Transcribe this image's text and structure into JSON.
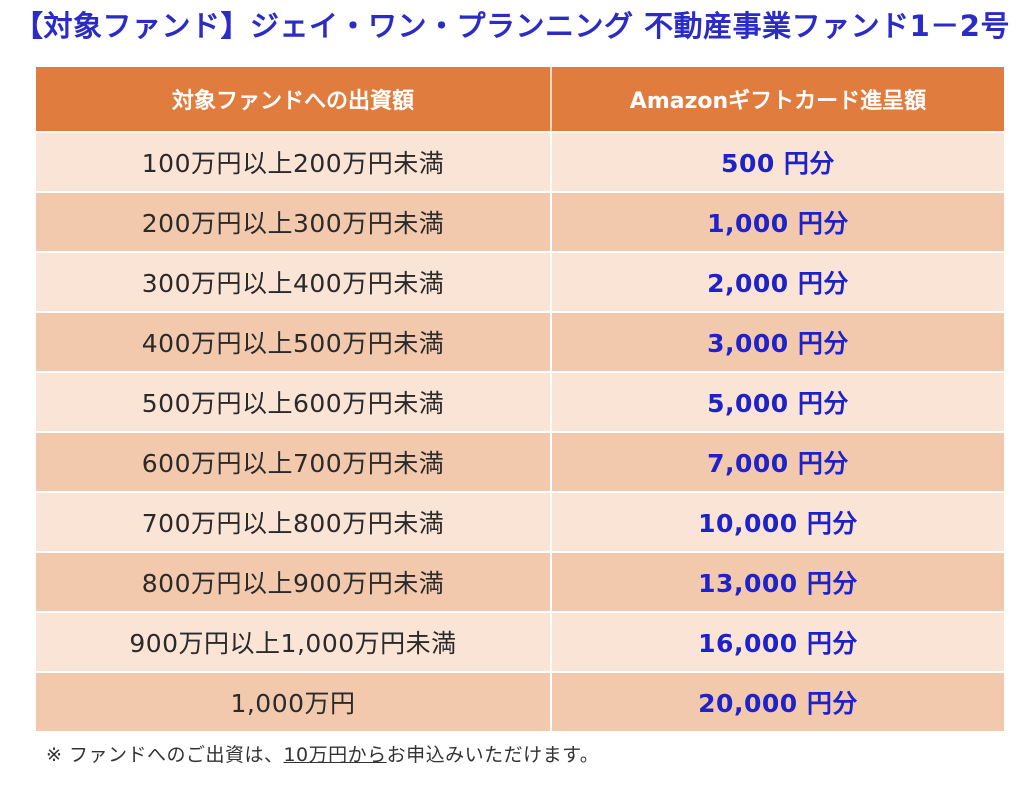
{
  "title": "【対象ファンド】ジェイ・ワン・プランニング 不動産事業ファンド1－2号",
  "table": {
    "headers": [
      "対象ファンドへの出資額",
      "Amazonギフトカード進呈額"
    ],
    "rows": [
      {
        "range": "100万円以上200万円未満",
        "amount": "500 円分"
      },
      {
        "range": "200万円以上300万円未満",
        "amount": "1,000 円分"
      },
      {
        "range": "300万円以上400万円未満",
        "amount": "2,000 円分"
      },
      {
        "range": "400万円以上500万円未満",
        "amount": "3,000 円分"
      },
      {
        "range": "500万円以上600万円未満",
        "amount": "5,000 円分"
      },
      {
        "range": "600万円以上700万円未満",
        "amount": "7,000 円分"
      },
      {
        "range": "700万円以上800万円未満",
        "amount": "10,000 円分"
      },
      {
        "range": "800万円以上900万円未満",
        "amount": "13,000 円分"
      },
      {
        "range": "900万円以上1,000万円未満",
        "amount": "16,000 円分"
      },
      {
        "range": "1,000万円",
        "amount": "20,000 円分"
      }
    ]
  },
  "note": {
    "prefix": "※ ファンドへのご出資は、",
    "underlined": "10万円から",
    "suffix": "お申込みいただけます。"
  },
  "colors": {
    "title": "#2b2bc6",
    "header_bg": "#e07d3e",
    "row_light": "#fae4d6",
    "row_dark": "#f3c9ad",
    "amount_text": "#1e22c8"
  }
}
